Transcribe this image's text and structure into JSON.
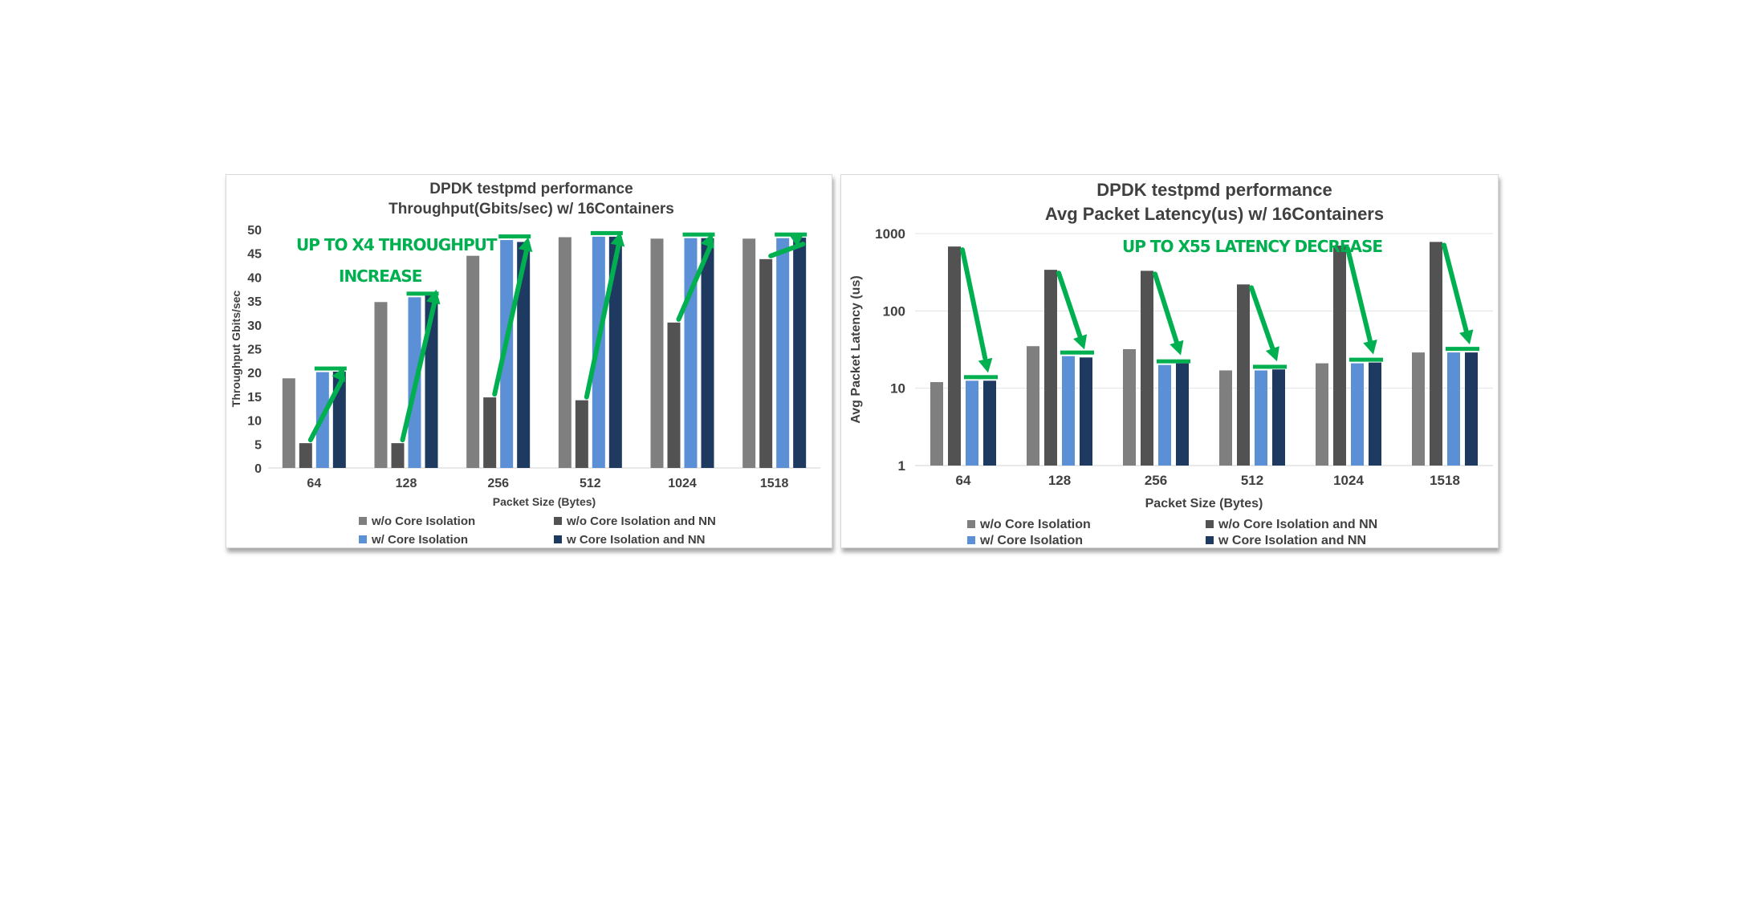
{
  "colors": {
    "wo_core": "#7f7f7f",
    "wo_core_nn": "#525252",
    "w_core": "#5b8fd6",
    "w_core_nn": "#1e3a60",
    "annotation": "#00b050"
  },
  "chart_data": [
    {
      "type": "bar",
      "title": "DPDK testpmd performance",
      "subtitle": "Throughput(Gbits/sec) w/ 16Containers",
      "xlabel": "Packet Size (Bytes)",
      "ylabel": "Throughput Gbits/sec",
      "yscale": "linear",
      "ylim": [
        0,
        50
      ],
      "yticks": [
        "0",
        "5",
        "10",
        "15",
        "20",
        "25",
        "30",
        "35",
        "40",
        "45",
        "50"
      ],
      "grid": false,
      "legend_position": "bottom",
      "categories": [
        "64",
        "128",
        "256",
        "512",
        "1024",
        "1518"
      ],
      "series": [
        {
          "name": "w/o Core Isolation",
          "values": [
            18.8,
            34.8,
            44.5,
            48.4,
            48.1,
            48.1
          ]
        },
        {
          "name": "w/o Core Isolation and NN",
          "values": [
            5.2,
            5.2,
            14.8,
            14.2,
            30.5,
            43.8
          ]
        },
        {
          "name": "w/ Core Isolation",
          "values": [
            20.1,
            35.8,
            47.8,
            48.5,
            48.2,
            48.2
          ]
        },
        {
          "name": "w Core Isolation and NN",
          "values": [
            20.2,
            36.4,
            47.4,
            48.5,
            48.2,
            48.3
          ]
        }
      ],
      "annotations": [
        "UP TO X4 THROUGHPUT",
        "INCREASE"
      ]
    },
    {
      "type": "bar",
      "title": "DPDK testpmd performance",
      "subtitle": "Avg Packet Latency(us)  w/ 16Containers",
      "xlabel": "Packet Size (Bytes)",
      "ylabel": "Avg Packet Latency (us)",
      "yscale": "log",
      "ylim": [
        1,
        1000
      ],
      "yticks": [
        "1",
        "10",
        "100",
        "1000"
      ],
      "grid": true,
      "legend_position": "bottom",
      "categories": [
        "64",
        "128",
        "256",
        "512",
        "1024",
        "1518"
      ],
      "series": [
        {
          "name": "w/o Core Isolation",
          "values": [
            12,
            35,
            32,
            17,
            21,
            29
          ]
        },
        {
          "name": "w/o Core Isolation and NN",
          "values": [
            680,
            340,
            330,
            220,
            700,
            780
          ]
        },
        {
          "name": "w/ Core Isolation",
          "values": [
            12.5,
            26,
            20,
            17,
            21,
            29
          ]
        },
        {
          "name": "w Core Isolation and NN",
          "values": [
            12.5,
            25,
            21,
            17.5,
            21.5,
            29
          ]
        }
      ],
      "annotations": [
        "UP TO X55 LATENCY DECREASE"
      ]
    }
  ]
}
